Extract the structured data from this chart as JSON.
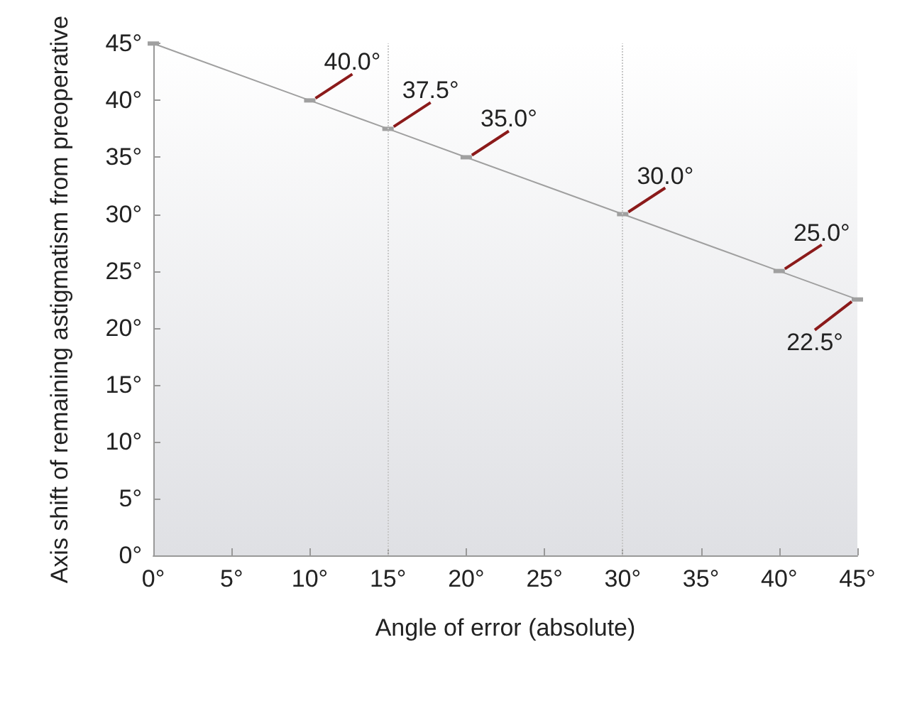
{
  "chart_data": {
    "type": "line",
    "xlabel": "Angle of error (absolute)",
    "ylabel": "Axis shift of remaining astigmatism from preoperative",
    "x": [
      0,
      10,
      15,
      20,
      30,
      40,
      45
    ],
    "series": [
      {
        "color": "#a0a0a0",
        "values": [
          45,
          40,
          37.5,
          35,
          30,
          25,
          22.5
        ],
        "value_labels": [
          null,
          "40.0°",
          "37.5°",
          "35.0°",
          "30.0°",
          "25.0°",
          "22.5°"
        ]
      }
    ],
    "xlim": [
      0,
      45
    ],
    "ylim": [
      0,
      45
    ],
    "xticks": [
      {
        "value": 0,
        "label": "0°"
      },
      {
        "value": 5,
        "label": "5°"
      },
      {
        "value": 10,
        "label": "10°"
      },
      {
        "value": 15,
        "label": "15°"
      },
      {
        "value": 20,
        "label": "20°"
      },
      {
        "value": 25,
        "label": "25°"
      },
      {
        "value": 30,
        "label": "30°"
      },
      {
        "value": 35,
        "label": "35°"
      },
      {
        "value": 40,
        "label": "40°"
      },
      {
        "value": 45,
        "label": "45°"
      }
    ],
    "yticks": [
      {
        "value": 0,
        "label": "0°"
      },
      {
        "value": 5,
        "label": "5°"
      },
      {
        "value": 10,
        "label": "10°"
      },
      {
        "value": 15,
        "label": "15°"
      },
      {
        "value": 20,
        "label": "20°"
      },
      {
        "value": 25,
        "label": "25°"
      },
      {
        "value": 30,
        "label": "30°"
      },
      {
        "value": 35,
        "label": "35°"
      },
      {
        "value": 40,
        "label": "40°"
      },
      {
        "value": 45,
        "label": "45°"
      }
    ],
    "ref_lines": [
      {
        "axis": "x",
        "value": 15,
        "color": "#c8c8c8",
        "line_style": "dotted"
      },
      {
        "axis": "x",
        "value": 30,
        "color": "#c8c8c8",
        "line_style": "dotted"
      }
    ],
    "marker": "square",
    "line_style": "solid",
    "grid": false
  }
}
